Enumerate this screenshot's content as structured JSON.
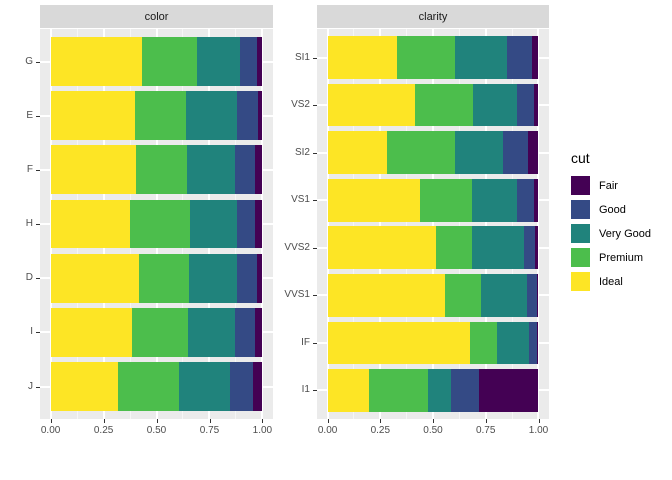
{
  "figure": {
    "background": "#FFFFFF",
    "panel_bg": "#EBEBEB",
    "strip_bg": "#D9D9D9",
    "grid_color": "#FFFFFF",
    "axis_text_color": "#4D4D4D",
    "strip_text_color": "#1A1A1A"
  },
  "legend": {
    "title": "cut",
    "items": [
      {
        "label": "Fair",
        "color": "#440154"
      },
      {
        "label": "Good",
        "color": "#344A85"
      },
      {
        "label": "Very Good",
        "color": "#20837C"
      },
      {
        "label": "Premium",
        "color": "#4CBE4C"
      },
      {
        "label": "Ideal",
        "color": "#FDE525"
      }
    ]
  },
  "chart_data": [
    {
      "type": "bar",
      "orientation": "horizontal",
      "stacked": true,
      "normalized": true,
      "facet_title": "color",
      "categories": [
        "G",
        "E",
        "F",
        "H",
        "D",
        "I",
        "J"
      ],
      "series": [
        {
          "name": "Ideal",
          "color": "#FDE525",
          "values": [
            0.433,
            0.398,
            0.401,
            0.375,
            0.418,
            0.386,
            0.319
          ]
        },
        {
          "name": "Premium",
          "color": "#4CBE4C",
          "values": [
            0.259,
            0.239,
            0.244,
            0.284,
            0.237,
            0.263,
            0.288
          ]
        },
        {
          "name": "Very Good",
          "color": "#20837C",
          "values": [
            0.204,
            0.245,
            0.227,
            0.22,
            0.223,
            0.222,
            0.241
          ]
        },
        {
          "name": "Good",
          "color": "#344A85",
          "values": [
            0.077,
            0.095,
            0.095,
            0.085,
            0.098,
            0.096,
            0.109
          ]
        },
        {
          "name": "Fair",
          "color": "#440154",
          "values": [
            0.027,
            0.023,
            0.033,
            0.036,
            0.024,
            0.033,
            0.043
          ]
        }
      ],
      "x_ticks": [
        "0.00",
        "0.25",
        "0.50",
        "0.75",
        "1.00"
      ],
      "x_tick_values": [
        0,
        0.25,
        0.5,
        0.75,
        1
      ],
      "xlim": [
        0,
        1
      ],
      "xlabel": "",
      "ylabel": ""
    },
    {
      "type": "bar",
      "orientation": "horizontal",
      "stacked": true,
      "normalized": true,
      "facet_title": "clarity",
      "categories": [
        "SI1",
        "VS2",
        "SI2",
        "VS1",
        "VVS2",
        "VVS1",
        "IF",
        "I1"
      ],
      "series": [
        {
          "name": "Ideal",
          "color": "#FDE525",
          "values": [
            0.328,
            0.414,
            0.283,
            0.44,
            0.514,
            0.559,
            0.677,
            0.197
          ]
        },
        {
          "name": "Premium",
          "color": "#4CBE4C",
          "values": [
            0.274,
            0.274,
            0.321,
            0.243,
            0.172,
            0.169,
            0.128,
            0.277
          ]
        },
        {
          "name": "Very Good",
          "color": "#20837C",
          "values": [
            0.248,
            0.211,
            0.228,
            0.217,
            0.244,
            0.216,
            0.15,
            0.113
          ]
        },
        {
          "name": "Good",
          "color": "#344A85",
          "values": [
            0.119,
            0.08,
            0.118,
            0.079,
            0.056,
            0.051,
            0.04,
            0.13
          ]
        },
        {
          "name": "Fair",
          "color": "#440154",
          "values": [
            0.031,
            0.021,
            0.05,
            0.021,
            0.014,
            0.005,
            0.005,
            0.283
          ]
        }
      ],
      "x_ticks": [
        "0.00",
        "0.25",
        "0.50",
        "0.75",
        "1.00"
      ],
      "x_tick_values": [
        0,
        0.25,
        0.5,
        0.75,
        1
      ],
      "xlim": [
        0,
        1
      ],
      "xlabel": "",
      "ylabel": ""
    }
  ]
}
